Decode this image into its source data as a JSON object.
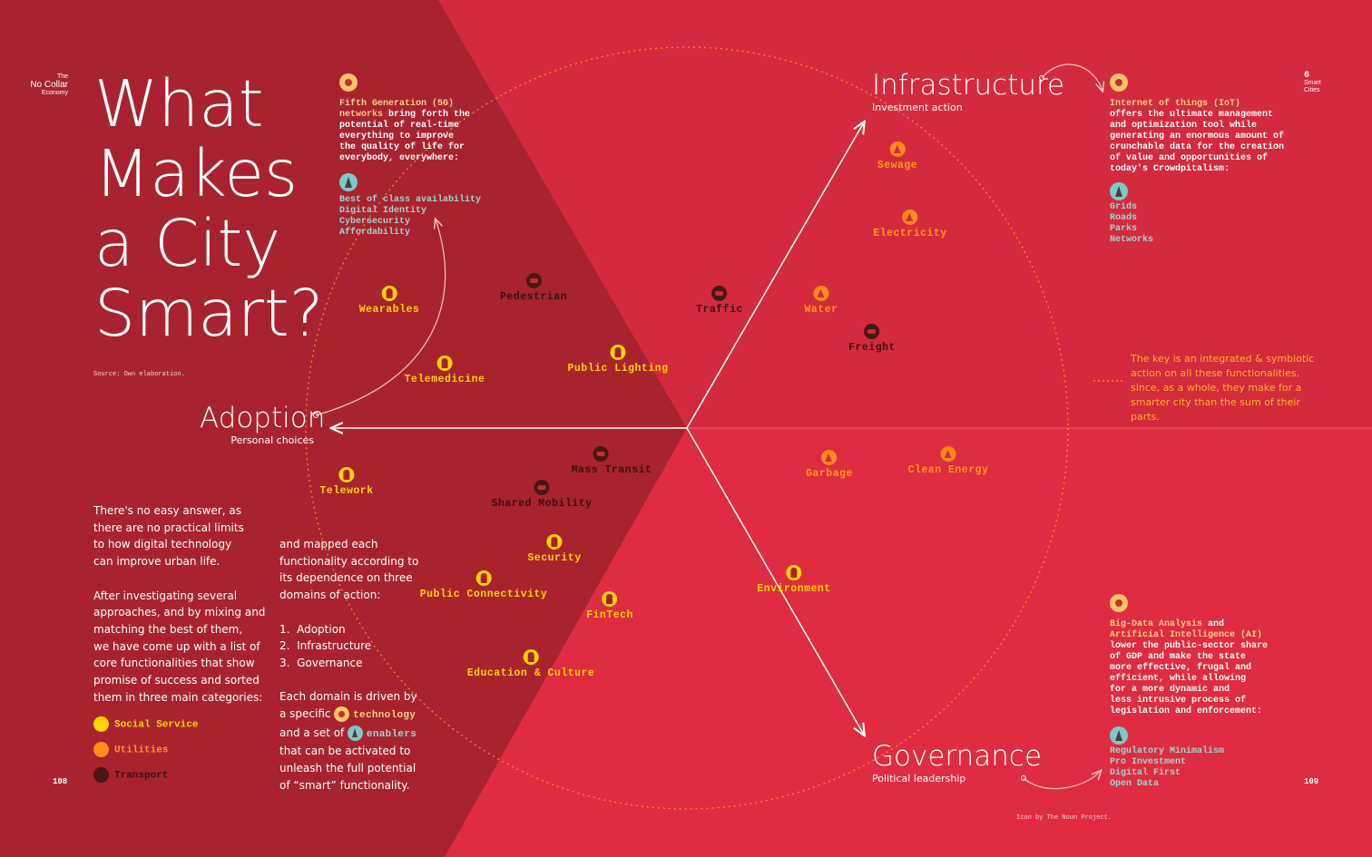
{
  "brand": {
    "line1": "The",
    "line2": "No Collar",
    "line3": "Economy"
  },
  "chapter": {
    "number": "6",
    "line1": "Smart",
    "line2": "Cities"
  },
  "title": {
    "line1": "What",
    "line2": "Makes",
    "line3": "a City",
    "line4": "Smart?"
  },
  "source": "Source: Own elaboration.",
  "domains": {
    "infrastructure": {
      "name": "Infrastructure",
      "sub": "Investment action"
    },
    "adoption": {
      "name": "Adoption",
      "sub": "Personal choices"
    },
    "governance": {
      "name": "Governance",
      "sub": "Political leadership"
    }
  },
  "panels": {
    "fiveg": {
      "tech": "Fifth Generation (5G) networks",
      "text": [
        " bring forth the",
        "potential of real-time",
        "everything to improve",
        "the quality of life for",
        "everybody, everywhere:"
      ],
      "enablers": [
        "Best of class availability",
        "Digital Identity",
        "Cybersecurity",
        "Affordability"
      ]
    },
    "iot": {
      "tech": "Internet of things (IoT)",
      "text": [
        "offers the ultimate management",
        "and optimization tool while",
        "generating an enormous amount of",
        "crunchable data for the creation",
        "of value and opportunities of",
        "today's Crowdpitalism:"
      ],
      "enablers": [
        "Grids",
        "Roads",
        "Parks",
        "Networks"
      ]
    },
    "ai": {
      "tech1": "Big-Data Analysis",
      "and": " and",
      "tech2": "Artificial Intelligence (AI)",
      "text": [
        "lower the public-sector share",
        "of GDP and make the state",
        "more effective, frugal and",
        "efficient, while allowing",
        "for a more dynamic and",
        "less intrusive process of",
        "legislation and enforcement:"
      ],
      "enablers": [
        "Regulatory Minimalism",
        "Pro Investment",
        "Digital First",
        "Open Data"
      ]
    }
  },
  "nodes": [
    {
      "label": "Sewage",
      "cat": "utility"
    },
    {
      "label": "Electricity",
      "cat": "utility"
    },
    {
      "label": "Water",
      "cat": "utility"
    },
    {
      "label": "Traffic",
      "cat": "transport"
    },
    {
      "label": "Freight",
      "cat": "transport"
    },
    {
      "label": "Pedestrian",
      "cat": "transport"
    },
    {
      "label": "Wearables",
      "cat": "social"
    },
    {
      "label": "Telemedicine",
      "cat": "social"
    },
    {
      "label": "Public Lighting",
      "cat": "social"
    },
    {
      "label": "Telework",
      "cat": "social"
    },
    {
      "label": "Mass Transit",
      "cat": "transport"
    },
    {
      "label": "Shared Mobility",
      "cat": "transport"
    },
    {
      "label": "Security",
      "cat": "social"
    },
    {
      "label": "Public Connectivity",
      "cat": "social"
    },
    {
      "label": "FinTech",
      "cat": "social"
    },
    {
      "label": "Education & Culture",
      "cat": "social"
    },
    {
      "label": "Garbage",
      "cat": "utility"
    },
    {
      "label": "Clean Energy",
      "cat": "utility"
    },
    {
      "label": "Environment",
      "cat": "social"
    }
  ],
  "key_text": "The key is an integrated & symbiotic action on all these functionalities, since, as a whole, they make for a smarter city than the sum of their parts.",
  "intro": {
    "p1": [
      "There's no easy answer, as",
      "there are no practical limits",
      "to how digital technology",
      "can improve urban life."
    ],
    "p2": [
      "After investigating several",
      "approaches, and by mixing and",
      "matching the best of them,",
      "we have come up with a list of",
      "core functionalities that show",
      "promise of success and sorted",
      "them in three main categories:"
    ]
  },
  "legend": {
    "social": "Social Service",
    "utility": "Utilities",
    "transport": "Transport"
  },
  "column2": {
    "p1": [
      "and mapped each",
      "functionality according to",
      "its dependence on three",
      "domains of action:"
    ],
    "list": [
      "1.  Adoption",
      "2.  Infrastructure",
      "3.  Governance"
    ],
    "p2_line1": "Each domain is driven by",
    "p2_pre_tech": "a specific ",
    "p2_tech": "technology",
    "p2_pre_en": "and a set of ",
    "p2_en": "enablers",
    "p2_rest": [
      "that can be activated to",
      "unleash the full potential",
      "of “smart” functionality."
    ]
  },
  "page_left": "108",
  "page_right": "109",
  "credit": "Icon by The Noun Project.",
  "colors": {
    "left_bg": "#a8232e",
    "mid_bg": "#d42a3d",
    "bottom_bg": "#e22e42",
    "social": "#ffd400",
    "utility": "#ff8c1a",
    "transport": "#4a1616",
    "key": "#ffb42a"
  }
}
